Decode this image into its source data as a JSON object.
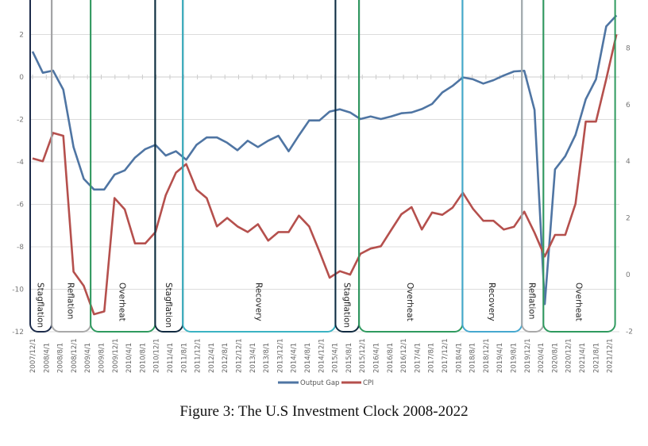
{
  "chart_data": {
    "type": "line",
    "title": "Figure 3: The U.S Investment Clock 2008-2022",
    "xlabel": "",
    "ylabel_left": "",
    "ylabel_right": "",
    "frequency": "quarterly",
    "x_tick_labels": [
      "2007/12/1",
      "2008/4/1",
      "2008/8/1",
      "2008/12/1",
      "2009/4/1",
      "2009/8/1",
      "2009/12/1",
      "2010/4/1",
      "2010/8/1",
      "2010/12/1",
      "2011/4/1",
      "2011/8/1",
      "2011/12/1",
      "2012/4/1",
      "2012/8/1",
      "2012/12/1",
      "2013/4/1",
      "2013/8/1",
      "2013/12/1",
      "2014/4/1",
      "2014/8/1",
      "2014/12/1",
      "2015/4/1",
      "2015/8/1",
      "2015/12/1",
      "2016/4/1",
      "2016/8/1",
      "2016/12/1",
      "2017/4/1",
      "2017/8/1",
      "2017/12/1",
      "2018/4/1",
      "2018/8/1",
      "2018/12/1",
      "2019/4/1",
      "2019/8/1",
      "2019/12/1",
      "2020/4/1",
      "2020/8/1",
      "2020/12/1",
      "2021/4/1",
      "2021/8/1",
      "2021/12/1"
    ],
    "left_axis": {
      "ticks": [
        "2",
        "0",
        "-2",
        "-4",
        "-6",
        "-8",
        "-10",
        "-12"
      ],
      "ylim": [
        -12,
        2
      ]
    },
    "right_axis": {
      "ticks": [
        "8",
        "6",
        "4",
        "2",
        "0",
        "-2"
      ],
      "ylim": [
        -2,
        8
      ]
    },
    "grid": true,
    "legend_position": "bottom",
    "series": [
      {
        "name": "Output Gap",
        "axis": "left",
        "color": "#4f75a3",
        "values": [
          1.2,
          0.2,
          0.3,
          -0.6,
          -3.3,
          -4.8,
          -5.3,
          -5.3,
          -4.6,
          -4.4,
          -3.8,
          -3.4,
          -3.2,
          -3.7,
          -3.5,
          -3.9,
          -3.2,
          -2.85,
          -2.85,
          -3.1,
          -3.45,
          -3.0,
          -3.3,
          -3.0,
          -2.77,
          -3.5,
          -2.75,
          -2.05,
          -2.05,
          -1.63,
          -1.52,
          -1.67,
          -1.98,
          -1.86,
          -1.98,
          -1.86,
          -1.71,
          -1.67,
          -1.51,
          -1.27,
          -0.73,
          -0.42,
          -0.02,
          -0.11,
          -0.31,
          -0.15,
          0.07,
          0.26,
          0.29,
          -1.55,
          -10.7,
          -4.35,
          -3.73,
          -2.73,
          -1.05,
          -0.11,
          2.38,
          2.9
        ]
      },
      {
        "name": "CPI",
        "axis": "right",
        "color": "#b5504d",
        "values": [
          4.1,
          4.0,
          5.0,
          4.9,
          0.1,
          -0.4,
          -1.4,
          -1.3,
          2.7,
          2.3,
          1.1,
          1.1,
          1.5,
          2.8,
          3.6,
          3.9,
          3.0,
          2.7,
          1.7,
          2.0,
          1.7,
          1.5,
          1.78,
          1.2,
          1.5,
          1.5,
          2.08,
          1.7,
          0.82,
          -0.11,
          0.12,
          0.0,
          0.73,
          0.92,
          1.0,
          1.57,
          2.13,
          2.38,
          1.59,
          2.19,
          2.11,
          2.36,
          2.89,
          2.32,
          1.9,
          1.9,
          1.59,
          1.69,
          2.22,
          1.48,
          0.64,
          1.4,
          1.4,
          2.5,
          5.4,
          5.4,
          6.9,
          8.48
        ]
      }
    ],
    "regimes": [
      {
        "label": "Stagflation",
        "start": 0,
        "end": 2.1,
        "color": "#1c2b4a"
      },
      {
        "label": "Reflation",
        "start": 2.1,
        "end": 5.9,
        "color": "#a9a9a9"
      },
      {
        "label": "Overheat",
        "start": 5.9,
        "end": 12.2,
        "color": "#2f9a5f"
      },
      {
        "label": "Stagflation",
        "start": 12.2,
        "end": 14.9,
        "color": "#102a40"
      },
      {
        "label": "Recovery",
        "start": 14.9,
        "end": 29.8,
        "color": "#3bb3c3"
      },
      {
        "label": "Stagflation",
        "start": 29.8,
        "end": 32.1,
        "color": "#102a40"
      },
      {
        "label": "Overheat",
        "start": 32.1,
        "end": 42.2,
        "color": "#2f9a5f"
      },
      {
        "label": "Recovery",
        "start": 42.2,
        "end": 48.0,
        "color": "#46a8cf"
      },
      {
        "label": "Reflation",
        "start": 48.0,
        "end": 50.1,
        "color": "#a9a9a9"
      },
      {
        "label": "Overheat",
        "start": 50.1,
        "end": 57.1,
        "color": "#2f9a5f"
      }
    ]
  }
}
